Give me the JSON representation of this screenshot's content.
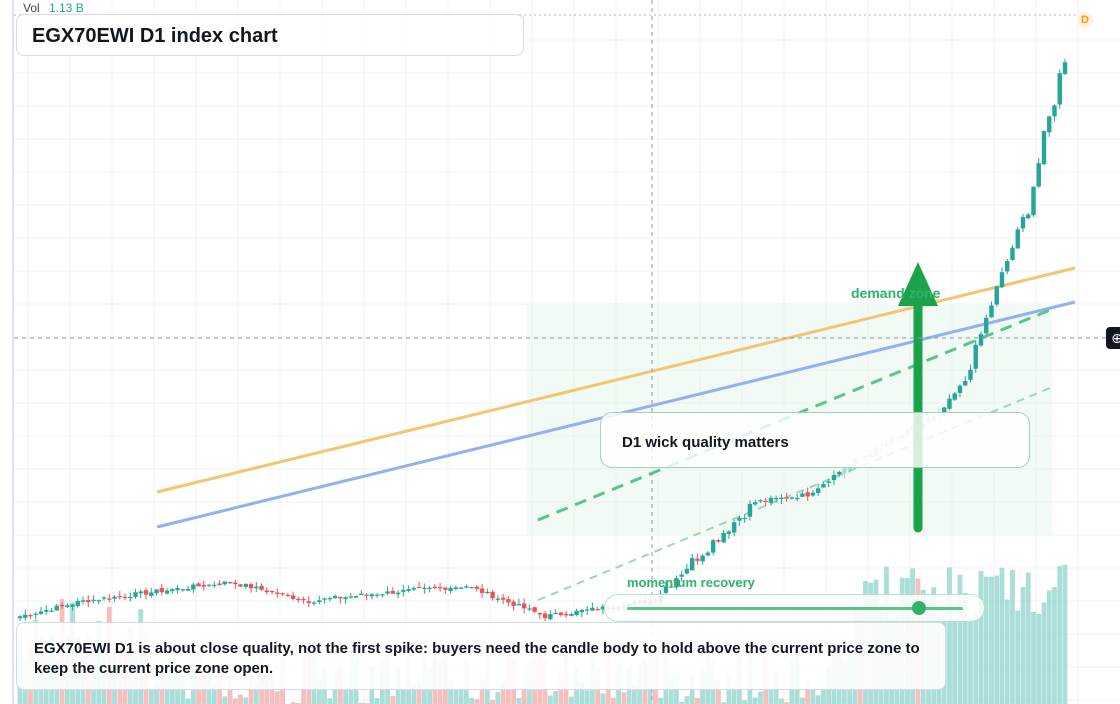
{
  "header": {
    "title": "EGX70EWI D1 index chart",
    "vol_label": "Vol",
    "vol_value": "1.13 B"
  },
  "annotations": {
    "note": "D1 wick quality matters",
    "demand_zone": "demand zone",
    "momentum": "momentum recovery",
    "bottom": "EGX70EWI D1 is about close quality, not the first spike: buyers need the candle body to hold above the current price zone to keep the current price zone open."
  },
  "momentum_slider": {
    "value": 0.87
  },
  "badges": {
    "dividend": "D",
    "crosshair_icon": "crosshair-plus-icon"
  },
  "colors": {
    "up": "#26a69a",
    "down": "#ef5350",
    "trend_orange": "#f5c46e",
    "trend_blue": "#94b0ee",
    "accent_green": "#2eb36a"
  },
  "chart_data": {
    "type": "candlestick",
    "title": "EGX70EWI D1 index chart",
    "xlabel": "",
    "ylabel": "",
    "grid": true,
    "legend": "none",
    "candle_count": 200,
    "segments": [
      {
        "start": 0,
        "end": 12,
        "from": 62,
        "to": 66
      },
      {
        "start": 12,
        "end": 40,
        "from": 66,
        "to": 71
      },
      {
        "start": 40,
        "end": 55,
        "from": 71,
        "to": 66
      },
      {
        "start": 55,
        "end": 68,
        "from": 66,
        "to": 68
      },
      {
        "start": 68,
        "end": 85,
        "from": 68,
        "to": 70
      },
      {
        "start": 85,
        "end": 100,
        "from": 70,
        "to": 62
      },
      {
        "start": 100,
        "end": 120,
        "from": 62,
        "to": 66
      },
      {
        "start": 120,
        "end": 140,
        "from": 66,
        "to": 92
      },
      {
        "start": 140,
        "end": 150,
        "from": 92,
        "to": 94
      },
      {
        "start": 150,
        "end": 158,
        "from": 94,
        "to": 102
      },
      {
        "start": 158,
        "end": 175,
        "from": 102,
        "to": 115
      },
      {
        "start": 175,
        "end": 180,
        "from": 115,
        "to": 124
      },
      {
        "start": 180,
        "end": 186,
        "from": 124,
        "to": 148
      },
      {
        "start": 186,
        "end": 192,
        "from": 148,
        "to": 170
      },
      {
        "start": 192,
        "end": 200,
        "from": 170,
        "to": 215
      }
    ],
    "y_range": [
      40,
      220
    ]
  }
}
